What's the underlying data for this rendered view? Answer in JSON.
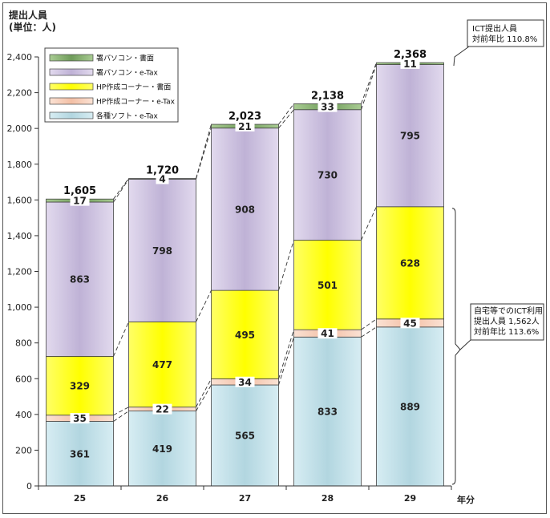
{
  "chart_data": {
    "type": "bar",
    "stacked": true,
    "ylabel_lines": [
      "提出人員",
      "(単位：人)"
    ],
    "xlabel": "年分",
    "ylim": [
      0,
      2400
    ],
    "ytick_step": 200,
    "categories": [
      "25",
      "26",
      "27",
      "28",
      "29"
    ],
    "series": [
      {
        "name": "各種ソフト・e-Tax",
        "values": [
          361,
          419,
          565,
          833,
          889
        ],
        "color": "#bcdde6"
      },
      {
        "name": "HP作成コーナー・e-Tax",
        "values": [
          35,
          22,
          34,
          41,
          45
        ],
        "color": "#f7cdb8"
      },
      {
        "name": "HP作成コーナー・書面",
        "values": [
          329,
          477,
          495,
          501,
          628
        ],
        "color": "#ffff33"
      },
      {
        "name": "署パソコン・e-Tax",
        "values": [
          863,
          798,
          908,
          730,
          795
        ],
        "color": "#cfc4e0"
      },
      {
        "name": "署パソコン・書面",
        "values": [
          17,
          4,
          21,
          33,
          11
        ],
        "color": "#8fb57a"
      }
    ],
    "totals": [
      "1,605",
      "1,720",
      "2,023",
      "2,138",
      "2,368"
    ],
    "legend_placement": "top-left",
    "legend_order": [
      4,
      3,
      2,
      1,
      0
    ],
    "grid": false
  },
  "callouts": {
    "ict": [
      "ICT提出人員",
      "対前年比  110.8%"
    ],
    "home": [
      "自宅等でのICT利用",
      "提出人員    1,562人",
      "対前年比   113.6%"
    ]
  }
}
